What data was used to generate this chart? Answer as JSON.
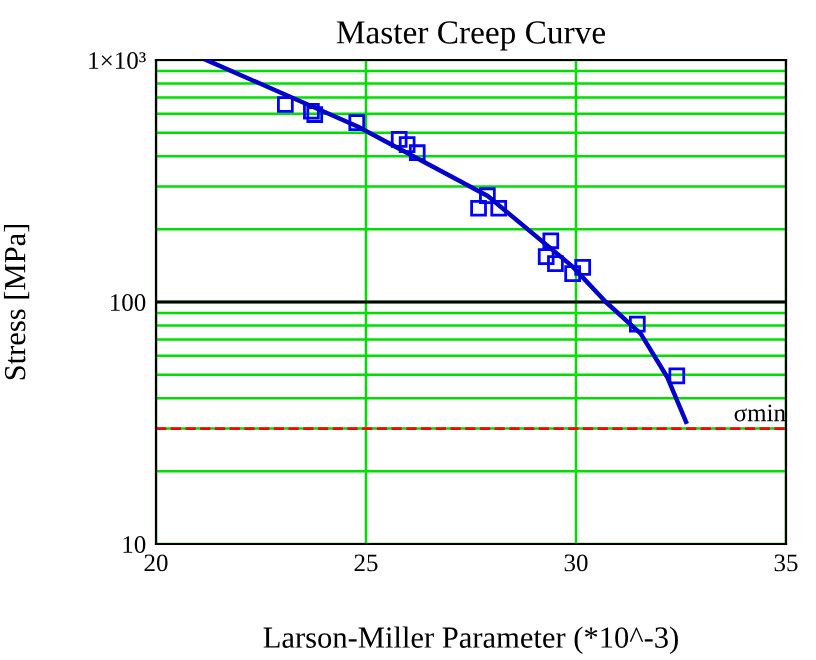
{
  "chart_data": {
    "type": "scatter",
    "title": "Master Creep Curve",
    "xlabel": "Larson-Miller Parameter (*10^-3)",
    "ylabel": "Stress [MPa]",
    "log": "y",
    "grid": true,
    "legend": false,
    "xlim": [
      20,
      35
    ],
    "xticks": [
      20,
      25,
      30,
      35
    ],
    "ylim": [
      10,
      1000
    ],
    "yticks": [
      {
        "value": 10,
        "label": "10"
      },
      {
        "value": 100,
        "label": "100"
      },
      {
        "value": 1000,
        "label": "1×10³"
      }
    ],
    "series": [
      {
        "marker": "square",
        "color": "#0000ff",
        "x": [
          23.08,
          23.7,
          23.78,
          24.78,
          25.79,
          25.98,
          26.22,
          27.89,
          27.68,
          28.16,
          29.4,
          29.29,
          29.51,
          29.92,
          30.16,
          31.46,
          32.4
        ],
        "values": [
          655,
          614,
          595,
          551,
          470,
          447,
          414,
          275,
          244,
          244,
          179,
          154,
          144,
          131,
          139,
          81,
          49.5
        ]
      },
      {
        "type": "line",
        "marker": "none",
        "line_style": "solid",
        "color": "#0000cc",
        "x": [
          21.2,
          24.8,
          27.9,
          29.92,
          30.71,
          31.54,
          32.17,
          32.62
        ],
        "values": [
          1000,
          531,
          274,
          140,
          100,
          74,
          49,
          32
        ]
      }
    ],
    "ref_lines": [
      {
        "axis": "y",
        "value": 100,
        "color": "#000000",
        "line_style": "solid"
      },
      {
        "axis": "y",
        "value": 30,
        "label": "σmin",
        "color": "#ff0000",
        "line_style": "dashed"
      }
    ]
  }
}
